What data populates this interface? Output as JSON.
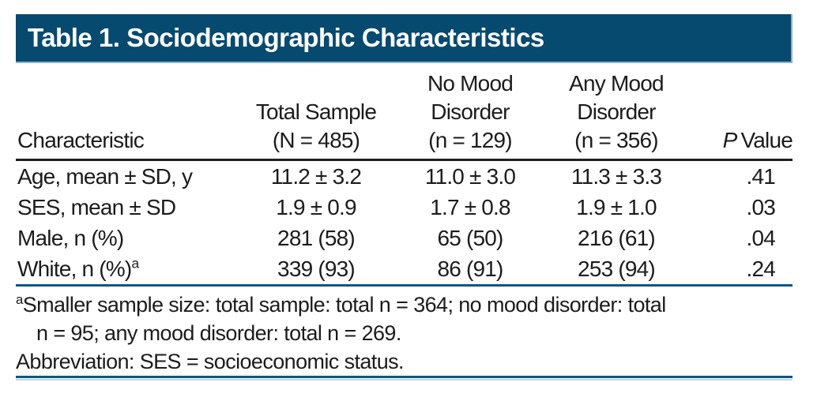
{
  "title_bar": {
    "text": "Table 1. Sociodemographic Characteristics"
  },
  "table": {
    "header": {
      "characteristic": "Characteristic",
      "total_sample_lines": [
        "Total Sample",
        "(N = 485)"
      ],
      "no_mood_lines": [
        "No Mood",
        "Disorder",
        "(n = 129)"
      ],
      "any_mood_lines": [
        "Any Mood",
        "Disorder",
        "(n = 356)"
      ],
      "p_italic": "P",
      "p_rest": "Value"
    },
    "rows": [
      {
        "label": "Age, mean ± SD, y",
        "sup": "",
        "total": "11.2 ± 3.2",
        "no_mood": "11.0 ± 3.0",
        "any_mood": "11.3 ± 3.3",
        "p": ".41"
      },
      {
        "label": "SES, mean ± SD",
        "sup": "",
        "total": "1.9 ± 0.9",
        "no_mood": "1.7 ± 0.8",
        "any_mood": "1.9 ± 1.0",
        "p": ".03"
      },
      {
        "label": "Male, n (%)",
        "sup": "",
        "total": "281 (58)",
        "no_mood": "65 (50)",
        "any_mood": "216 (61)",
        "p": ".04"
      },
      {
        "label": "White, n (%)",
        "sup": "a",
        "total": "339 (93)",
        "no_mood": "86 (91)",
        "any_mood": "253 (94)",
        "p": ".24"
      }
    ]
  },
  "footnotes": {
    "a_marker": "a",
    "a_lines": [
      "Smaller sample size: total sample: total n = 364; no mood disorder: total",
      "n = 95; any mood disorder: total n = 269."
    ],
    "abbreviation": "Abbreviation: SES = socioeconomic status."
  },
  "colors": {
    "banner_background": "#064a70",
    "banner_text": "#ffffff",
    "header_rule": "#1f1f1f",
    "blue_rule": "#0d5586",
    "blue_rule_light_edge": "#bcd6e4",
    "body_text": "#1c1c1c"
  }
}
